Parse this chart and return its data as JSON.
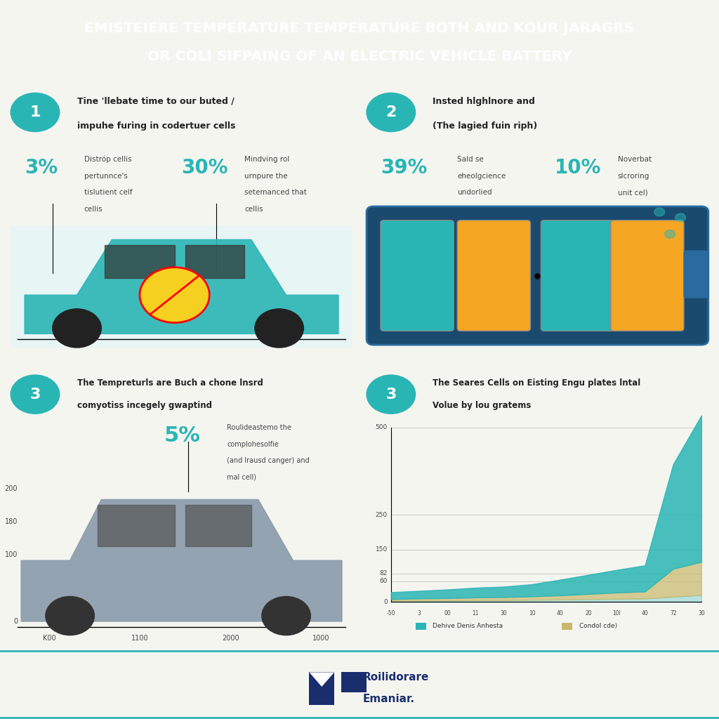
{
  "title_line1": "EMISTEIERE TEMPERATURE TEMPERATURE BOTH AND KOUR JARAGRS",
  "title_line2": "OR COLI SIFPAING OF AN ELECTRIC VEHICLE BATTERY",
  "title_bg_color": "#2ab5b5",
  "title_text_color": "#ffffff",
  "bg_color": "#f5f5f0",
  "panel_bg": "#ffffff",
  "teal_color": "#2ab5b5",
  "dark_teal": "#1a8a8a",
  "orange_color": "#f5a623",
  "navy_color": "#1a2e6e",
  "panel1": {
    "number": "1",
    "title": "Tine 'llebate time to our buted /\nimpuhe furing in codertuer cells",
    "stat1_pct": "3%",
    "stat1_text": "Distróp cellis\npertunnce's\ntislutient celf\ncellis",
    "stat2_pct": "30%",
    "stat2_text": "Mindving rol\nurnpure the\nsetemanced that\ncellis"
  },
  "panel2": {
    "number": "2",
    "title": "Insted hlghlnore and\n(The lagied fuin riph)",
    "stat1_pct": "39%",
    "stat1_text": "Sald se\neheolgcience\nundorlied",
    "stat2_pct": "10%",
    "stat2_text": "Noverbat\nslcroring\nunit cel)"
  },
  "panel3": {
    "number": "3",
    "title": "The Tempreturls are Buch a chone lnsrd\ncomyotiss incegely gwaptind",
    "stat_pct": "5%",
    "stat_text": "Roulideastemo the\ncomplohesolfie\n(and lrausd canger) and\nmal cell)",
    "x_labels": [
      "K00",
      "1100",
      "2000",
      "1000"
    ],
    "y_labels": [
      "0",
      "100",
      "180",
      "200"
    ],
    "y_max": 200
  },
  "panel4": {
    "number": "3",
    "title": "The Seares Cells on Eisting Engu plates lntal\nVolue by lou gratems",
    "x_labels": [
      "-50",
      "3",
      "00",
      "11",
      "30",
      "10",
      "40",
      "20",
      "10l",
      "40",
      "72",
      "30"
    ],
    "y_labels": [
      "0",
      "60",
      "82",
      "150",
      "250",
      "500"
    ],
    "legend": [
      "Dehive Denis Anhesta",
      "Condol cde)"
    ],
    "legend_colors": [
      "#2ab5b5",
      "#c8b96a"
    ],
    "series1": [
      20,
      22,
      25,
      28,
      30,
      35,
      45,
      55,
      65,
      75,
      300,
      420
    ],
    "series2": [
      5,
      6,
      7,
      8,
      9,
      10,
      12,
      15,
      18,
      20,
      80,
      95
    ],
    "series3": [
      3,
      4,
      4,
      5,
      5,
      6,
      7,
      8,
      9,
      10,
      15,
      20
    ]
  },
  "footer_brand": "Roilidorare\nEmaniar.",
  "footer_icon_color": "#1a2e6e"
}
